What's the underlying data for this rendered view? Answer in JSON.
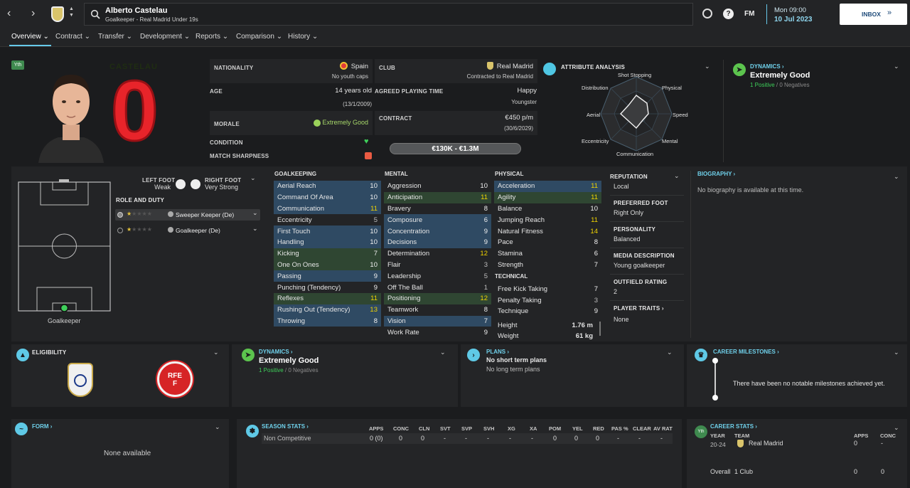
{
  "header": {
    "player_name": "Alberto Castelau",
    "player_sub": "Goalkeeper - Real Madrid Under 19s",
    "fm_label": "FM",
    "date_day": "Mon 09:00",
    "date_full": "10 Jul 2023",
    "inbox_label": "INBOX"
  },
  "nav": [
    "Overview",
    "Contract",
    "Transfer",
    "Development",
    "Reports",
    "Comparison",
    "History"
  ],
  "profile": {
    "age_badge": "Yth",
    "shirt_name": "CASTELAU",
    "shirt_number": "0",
    "nationality_label": "NATIONALITY",
    "nationality": "Spain",
    "youth_caps": "No youth caps",
    "club_label": "CLUB",
    "club": "Real Madrid",
    "club_contract": "Contracted to Real Madrid",
    "age_label": "AGE",
    "age": "14 years old",
    "dob": "(13/1/2009)",
    "playing_time_label": "AGREED PLAYING TIME",
    "playing_time": "Happy",
    "playing_time_sub": "Youngster",
    "morale_label": "MORALE",
    "morale": "Extremely Good",
    "contract_label": "CONTRACT",
    "wage": "€450 p/m",
    "contract_end": "(30/6/2029)",
    "condition_label": "CONDITION",
    "sharpness_label": "MATCH SHARPNESS",
    "value": "€130K - €1.3M"
  },
  "attribute_analysis": {
    "title": "ATTRIBUTE ANALYSIS",
    "axes": [
      "Shot Stopping",
      "Physical",
      "Speed",
      "Mental",
      "Communication",
      "Eccentricity",
      "Aerial",
      "Distribution"
    ]
  },
  "dynamics_top": {
    "title": "DYNAMICS",
    "value": "Extremely Good",
    "positives": "1 Positive",
    "negatives": "0 Negatives"
  },
  "position": {
    "left_foot_label": "LEFT FOOT",
    "left_foot": "Weak",
    "right_foot_label": "RIGHT FOOT",
    "right_foot": "Very Strong",
    "role_duty_label": "ROLE AND DUTY",
    "roles": [
      "Sweeper Keeper (De)",
      "Goalkeeper (De)"
    ],
    "position_name": "Goalkeeper"
  },
  "attributes": {
    "goalkeeping_title": "GOALKEEPING",
    "goalkeeping": [
      {
        "name": "Aerial Reach",
        "value": "10"
      },
      {
        "name": "Command Of Area",
        "value": "10"
      },
      {
        "name": "Communication",
        "value": "11"
      },
      {
        "name": "Eccentricity",
        "value": "5"
      },
      {
        "name": "First Touch",
        "value": "10"
      },
      {
        "name": "Handling",
        "value": "10"
      },
      {
        "name": "Kicking",
        "value": "7"
      },
      {
        "name": "One On Ones",
        "value": "10"
      },
      {
        "name": "Passing",
        "value": "9"
      },
      {
        "name": "Punching (Tendency)",
        "value": "9"
      },
      {
        "name": "Reflexes",
        "value": "11"
      },
      {
        "name": "Rushing Out (Tendency)",
        "value": "13"
      },
      {
        "name": "Throwing",
        "value": "8"
      }
    ],
    "mental_title": "MENTAL",
    "mental": [
      {
        "name": "Aggression",
        "value": "10"
      },
      {
        "name": "Anticipation",
        "value": "11"
      },
      {
        "name": "Bravery",
        "value": "8"
      },
      {
        "name": "Composure",
        "value": "6"
      },
      {
        "name": "Concentration",
        "value": "9"
      },
      {
        "name": "Decisions",
        "value": "9"
      },
      {
        "name": "Determination",
        "value": "12"
      },
      {
        "name": "Flair",
        "value": "3"
      },
      {
        "name": "Leadership",
        "value": "5"
      },
      {
        "name": "Off The Ball",
        "value": "1"
      },
      {
        "name": "Positioning",
        "value": "12"
      },
      {
        "name": "Teamwork",
        "value": "8"
      },
      {
        "name": "Vision",
        "value": "7"
      },
      {
        "name": "Work Rate",
        "value": "9"
      }
    ],
    "physical_title": "PHYSICAL",
    "physical": [
      {
        "name": "Acceleration",
        "value": "11"
      },
      {
        "name": "Agility",
        "value": "11"
      },
      {
        "name": "Balance",
        "value": "10"
      },
      {
        "name": "Jumping Reach",
        "value": "11"
      },
      {
        "name": "Natural Fitness",
        "value": "14"
      },
      {
        "name": "Pace",
        "value": "8"
      },
      {
        "name": "Stamina",
        "value": "6"
      },
      {
        "name": "Strength",
        "value": "7"
      }
    ],
    "technical_title": "TECHNICAL",
    "technical": [
      {
        "name": "Free Kick Taking",
        "value": "7"
      },
      {
        "name": "Penalty Taking",
        "value": "3"
      },
      {
        "name": "Technique",
        "value": "9"
      }
    ],
    "height_label": "Height",
    "height": "1.76 m",
    "weight_label": "Weight",
    "weight": "61 kg"
  },
  "info": {
    "reputation_label": "REPUTATION",
    "reputation": "Local",
    "preferred_foot_label": "PREFERRED FOOT",
    "preferred_foot": "Right Only",
    "personality_label": "PERSONALITY",
    "personality": "Balanced",
    "media_label": "MEDIA DESCRIPTION",
    "media": "Young goalkeeper",
    "outfield_label": "OUTFIELD RATING",
    "outfield": "2",
    "traits_label": "PLAYER TRAITS",
    "traits": "None"
  },
  "biography": {
    "title": "BIOGRAPHY",
    "text": "No biography is available at this time."
  },
  "eligibility": {
    "title": "ELIGIBILITY",
    "rfef_text": "RFEF"
  },
  "dynamics_mid": {
    "title": "DYNAMICS",
    "value": "Extremely Good",
    "positives": "1 Positive",
    "negatives": "0 Negatives"
  },
  "plans": {
    "title": "PLANS",
    "short": "No short term plans",
    "long": "No long term plans"
  },
  "milestones": {
    "title": "CAREER MILESTONES",
    "text": "There have been no notable milestones achieved yet."
  },
  "form": {
    "title": "FORM",
    "text": "None available"
  },
  "season_stats": {
    "title": "SEASON STATS",
    "headers": [
      "APPS",
      "CONC",
      "CLN",
      "SVT",
      "SVP",
      "SVH",
      "XG",
      "XA",
      "POM",
      "YEL",
      "RED",
      "PAS %",
      "CLEAR",
      "AV RAT"
    ],
    "row_label": "Non Competitive",
    "row": [
      "0 (0)",
      "0",
      "0",
      "-",
      "-",
      "-",
      "-",
      "-",
      "0",
      "0",
      "0",
      "-",
      "-",
      "-"
    ]
  },
  "career_stats": {
    "title": "CAREER STATS",
    "badge": "Yth",
    "year_label": "YEAR",
    "team_label": "TEAM",
    "apps_label": "APPS",
    "conc_label": "CONC",
    "year": "20-24",
    "team": "Real Madrid",
    "apps": "0",
    "conc": "-",
    "overall_label": "Overall",
    "overall_clubs": "1 Club",
    "overall_apps": "0",
    "overall_conc": "0"
  },
  "colors": {
    "accent": "#66c9ea",
    "positive": "#3ecf5a",
    "highlight": "#f1d400",
    "shirt": "#6ed12a",
    "shirt_number": "#e8242a"
  }
}
